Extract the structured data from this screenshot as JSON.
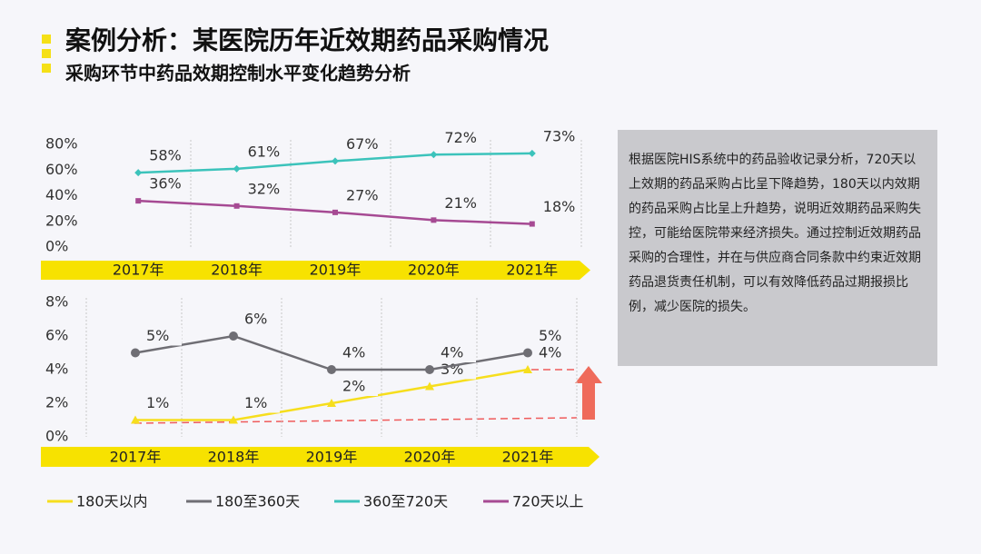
{
  "header": {
    "title": "案例分析：某医院历年近效期药品采购情况",
    "subtitle": "采购环节中药品效期控制水平变化趋势分析"
  },
  "note": "根据医院HIS系统中的药品验收记录分析，720天以上效期的药品采购占比呈下降趋势，180天以内效期的药品采购占比呈上升趋势，说明近效期药品采购失控，可能给医院带来经济损失。通过控制近效期药品采购的合理性，并在与供应商合同条款中约束近效期药品退货责任机制，可以有效降低药品过期报损比例，减少医院的损失。",
  "chart_data": [
    {
      "type": "line",
      "categories": [
        "2017年",
        "2018年",
        "2019年",
        "2020年",
        "2021年"
      ],
      "ylim": [
        0,
        80
      ],
      "yticks": [
        {
          "value": 0,
          "label": "0%"
        },
        {
          "value": 20,
          "label": "20%"
        },
        {
          "value": 40,
          "label": "40%"
        },
        {
          "value": 60,
          "label": "60%"
        },
        {
          "value": 80,
          "label": "80%"
        }
      ],
      "series": [
        {
          "name": "360至720天",
          "color": "#3cc3bb",
          "values": [
            58,
            61,
            67,
            72,
            73
          ],
          "value_labels": [
            "58%",
            "61%",
            "67%",
            "72%",
            "73%"
          ]
        },
        {
          "name": "720天以上",
          "color": "#a64a93",
          "values": [
            36,
            32,
            27,
            21,
            18
          ],
          "value_labels": [
            "36%",
            "32%",
            "27%",
            "21%",
            "18%"
          ]
        }
      ]
    },
    {
      "type": "line",
      "categories": [
        "2017年",
        "2018年",
        "2019年",
        "2020年",
        "2021年"
      ],
      "ylim": [
        0,
        8
      ],
      "yticks": [
        {
          "value": 0,
          "label": "0%"
        },
        {
          "value": 2,
          "label": "2%"
        },
        {
          "value": 4,
          "label": "4%"
        },
        {
          "value": 6,
          "label": "6%"
        },
        {
          "value": 8,
          "label": "8%"
        }
      ],
      "series": [
        {
          "name": "180天以内",
          "color": "#f6de1d",
          "values": [
            1,
            1,
            2,
            3,
            4
          ],
          "value_labels": [
            "1%",
            "1%",
            "2%",
            "3%",
            "4%"
          ]
        },
        {
          "name": "180至360天",
          "color": "#6f6e74",
          "values": [
            5,
            6,
            4,
            4,
            5
          ],
          "value_labels": [
            "5%",
            "6%",
            "4%",
            "4%",
            "5%"
          ]
        }
      ]
    }
  ]
}
